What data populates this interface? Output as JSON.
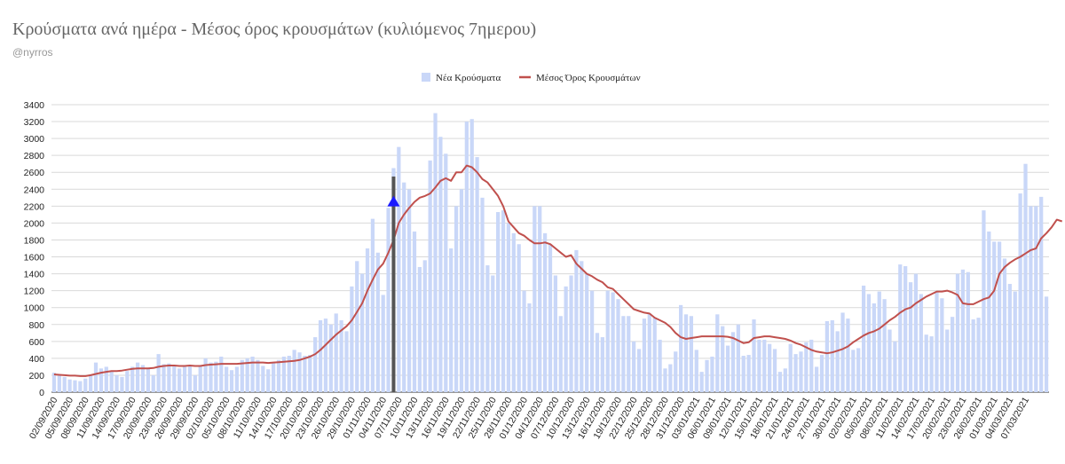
{
  "header": {
    "title": "Κρούσματα ανά ημέρα - Μέσος όρος κρουσμάτων (κυλιόμενος 7ημερου)",
    "subtitle": "@nyrros"
  },
  "chart_data": {
    "type": "bar",
    "title": "Κρούσματα ανά ημέρα - Μέσος όρος κρουσμάτων (κυλιόμενος 7ημερου)",
    "ylim": [
      0,
      3400
    ],
    "yticks": [
      0,
      200,
      400,
      600,
      800,
      1000,
      1200,
      1400,
      1600,
      1800,
      2000,
      2200,
      2400,
      2600,
      2800,
      3000,
      3200,
      3400
    ],
    "grid": true,
    "legend_position": "top-center",
    "colors": {
      "bars": "#c9d7f8",
      "line": "#c0504d",
      "grid": "#d9d9d9",
      "marker": "#1a1aff",
      "annotation_bar": "#555555"
    },
    "start_date": "2020-09-02",
    "x_tick_labels": [
      "02/09/2020",
      "05/09/2020",
      "08/09/2020",
      "11/09/2020",
      "14/09/2020",
      "17/09/2020",
      "20/09/2020",
      "23/09/2020",
      "26/09/2020",
      "29/09/2020",
      "02/10/2020",
      "05/10/2020",
      "08/10/2020",
      "11/10/2020",
      "14/10/2020",
      "17/10/2020",
      "20/10/2020",
      "23/10/2020",
      "26/10/2020",
      "29/10/2020",
      "01/11/2020",
      "04/11/2020",
      "07/11/2020",
      "10/11/2020",
      "13/11/2020",
      "16/11/2020",
      "19/11/2020",
      "22/11/2020",
      "25/11/2020",
      "28/11/2020",
      "01/12/2020",
      "04/12/2020",
      "07/12/2020",
      "10/12/2020",
      "13/12/2020",
      "16/12/2020",
      "19/12/2020",
      "22/12/2020",
      "25/12/2020",
      "28/12/2020",
      "31/12/2020",
      "03/01/2021",
      "06/01/2021",
      "09/01/2021",
      "12/01/2021",
      "15/01/2021",
      "18/01/2021",
      "21/01/2021",
      "24/01/2021",
      "27/01/2021",
      "30/01/2021",
      "02/02/2021",
      "05/02/2021",
      "08/02/2021",
      "11/02/2021",
      "14/02/2021",
      "17/02/2021",
      "20/02/2021",
      "23/02/2021",
      "26/02/2021",
      "01/03/2021",
      "04/03/2021",
      "07/03/2021"
    ],
    "series": [
      {
        "name": "Νέα Κρούσματα",
        "type": "bar",
        "values": [
          230,
          210,
          180,
          150,
          140,
          130,
          160,
          200,
          350,
          280,
          300,
          250,
          200,
          180,
          250,
          300,
          350,
          320,
          280,
          200,
          450,
          330,
          340,
          310,
          280,
          300,
          310,
          200,
          320,
          400,
          350,
          360,
          420,
          300,
          260,
          300,
          380,
          400,
          420,
          380,
          310,
          270,
          350,
          380,
          420,
          430,
          500,
          470,
          430,
          440,
          650,
          850,
          870,
          800,
          930,
          850,
          720,
          1250,
          1550,
          1400,
          1700,
          2050,
          1650,
          1150,
          2180,
          2650,
          2900,
          2480,
          2400,
          1900,
          1480,
          1560,
          2740,
          3300,
          3020,
          2820,
          1700,
          2200,
          2400,
          3200,
          3230,
          2780,
          2300,
          1500,
          1380,
          2130,
          2150,
          2000,
          1880,
          1750,
          1200,
          1050,
          2200,
          2200,
          1880,
          1750,
          1380,
          900,
          1250,
          1380,
          1680,
          1550,
          1400,
          1200,
          700,
          650,
          1200,
          1180,
          1100,
          900,
          900,
          600,
          510,
          870,
          930,
          880,
          620,
          280,
          330,
          480,
          1030,
          920,
          900,
          500,
          240,
          380,
          420,
          920,
          780,
          550,
          710,
          800,
          430,
          440,
          860,
          620,
          620,
          570,
          510,
          240,
          280,
          570,
          450,
          480,
          590,
          620,
          300,
          440,
          840,
          850,
          720,
          940,
          870,
          500,
          520,
          1260,
          1160,
          1050,
          1190,
          1100,
          740,
          600,
          1510,
          1490,
          1300,
          1400,
          1160,
          680,
          660,
          1180,
          1110,
          740,
          890,
          1400,
          1450,
          1420,
          860,
          880,
          2150,
          1900,
          1780,
          1780,
          1580,
          1280,
          1190,
          2350,
          2700,
          2200,
          2200,
          2310,
          1130
        ]
      },
      {
        "name": "Μέσος Όρος Κρουσμάτων",
        "type": "line",
        "values": [
          210,
          205,
          200,
          195,
          195,
          190,
          190,
          200,
          215,
          230,
          240,
          250,
          250,
          255,
          265,
          275,
          280,
          280,
          280,
          285,
          300,
          310,
          315,
          315,
          310,
          310,
          315,
          310,
          310,
          320,
          325,
          330,
          335,
          335,
          335,
          335,
          340,
          345,
          350,
          350,
          350,
          345,
          350,
          355,
          360,
          365,
          370,
          380,
          400,
          420,
          450,
          500,
          560,
          620,
          680,
          730,
          780,
          850,
          950,
          1050,
          1200,
          1330,
          1450,
          1520,
          1650,
          1800,
          2000,
          2100,
          2180,
          2250,
          2300,
          2320,
          2350,
          2420,
          2500,
          2530,
          2500,
          2600,
          2600,
          2680,
          2660,
          2600,
          2520,
          2480,
          2400,
          2320,
          2200,
          2020,
          1950,
          1880,
          1850,
          1800,
          1760,
          1760,
          1770,
          1750,
          1700,
          1650,
          1600,
          1620,
          1520,
          1460,
          1400,
          1370,
          1330,
          1300,
          1240,
          1220,
          1160,
          1100,
          1040,
          980,
          960,
          940,
          930,
          880,
          850,
          820,
          770,
          700,
          650,
          630,
          640,
          650,
          660,
          660,
          660,
          660,
          660,
          655,
          640,
          610,
          580,
          590,
          640,
          650,
          660,
          660,
          650,
          640,
          630,
          610,
          580,
          560,
          530,
          500,
          480,
          470,
          460,
          470,
          490,
          510,
          540,
          590,
          630,
          670,
          700,
          720,
          750,
          800,
          850,
          890,
          940,
          980,
          1000,
          1050,
          1090,
          1130,
          1160,
          1190,
          1190,
          1200,
          1180,
          1150,
          1050,
          1040,
          1040,
          1070,
          1100,
          1120,
          1200,
          1400,
          1480,
          1530,
          1570,
          1600,
          1640,
          1680,
          1700,
          1820,
          1880,
          1950,
          2040,
          2020
        ]
      }
    ],
    "annotations": [
      {
        "type": "marker_bar",
        "date": "06/11/2020",
        "value": 2250
      }
    ]
  }
}
